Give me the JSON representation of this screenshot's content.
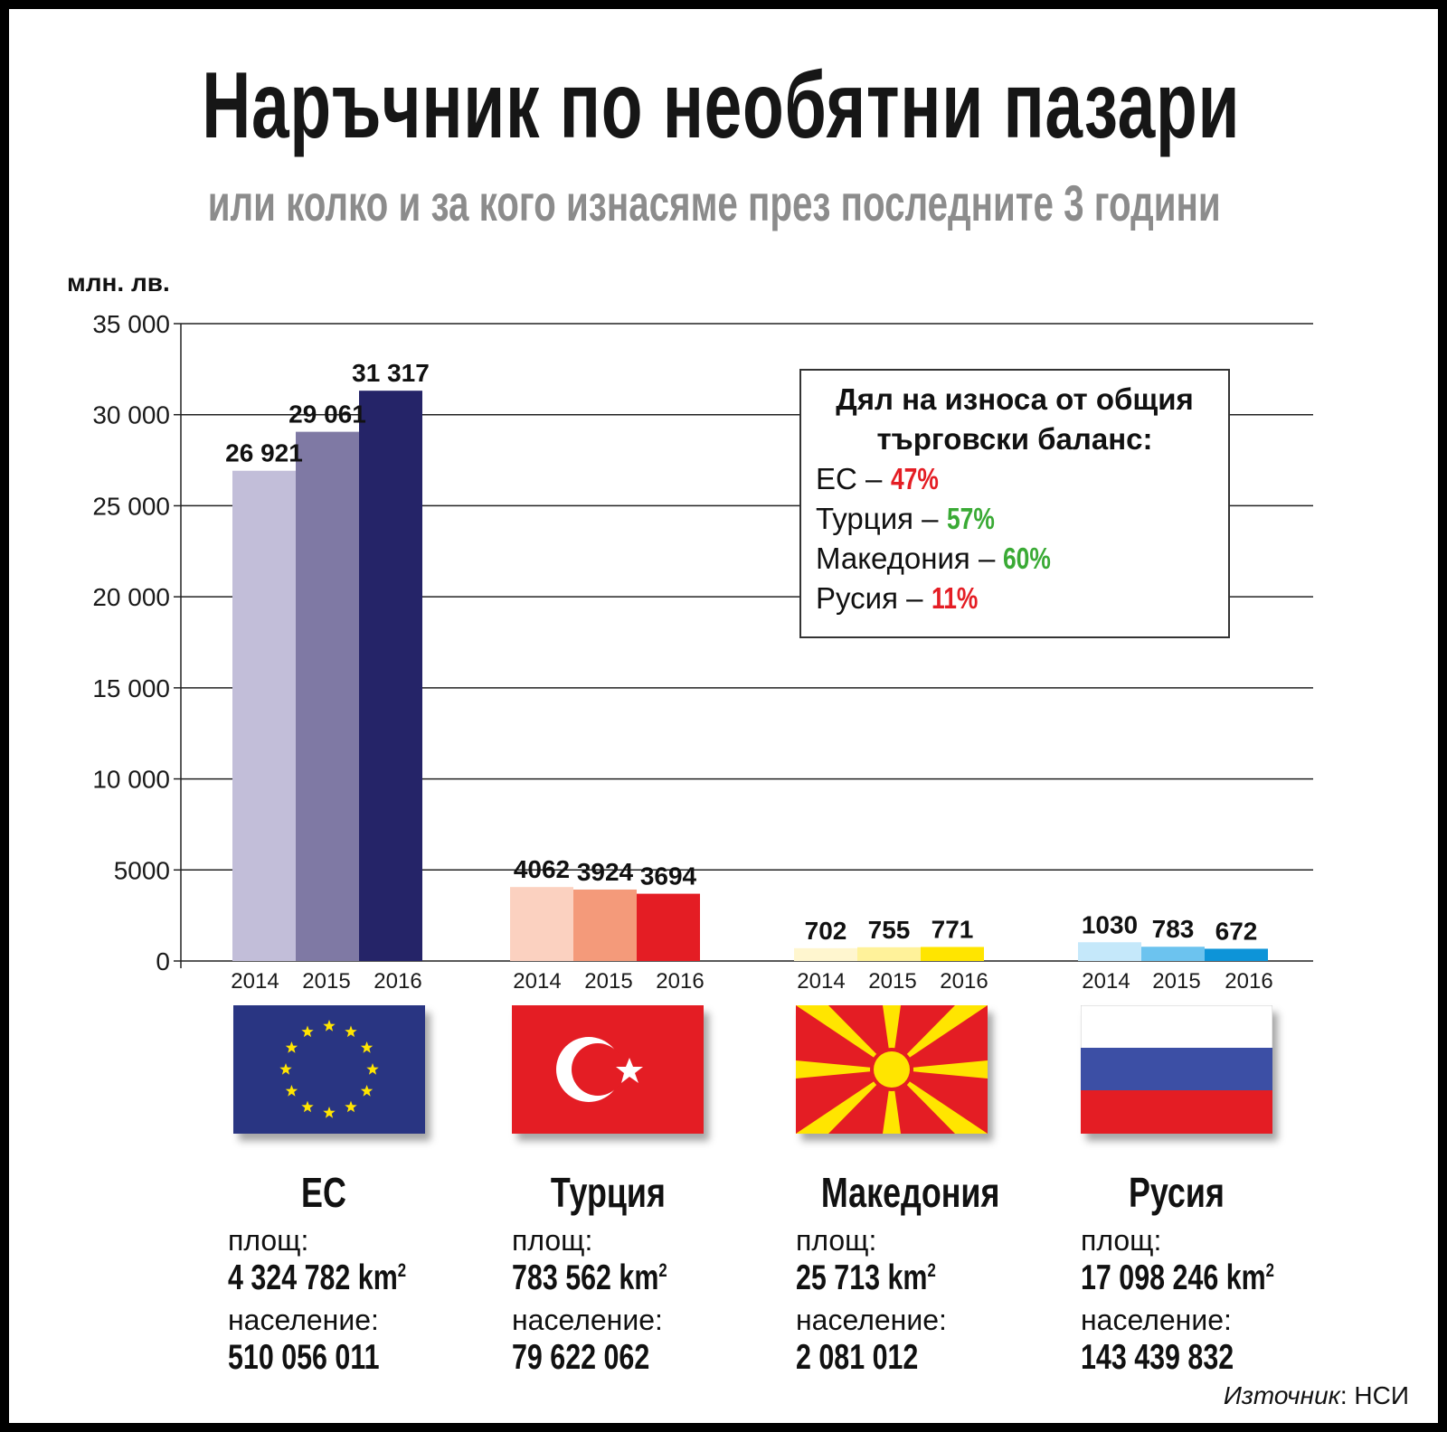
{
  "header": {
    "title": "Наръчник по необятни пазари",
    "subtitle": "или колко и за кого изнасяме през последните 3 години"
  },
  "chart_data": {
    "type": "bar",
    "ylabel": "млн. лв.",
    "ylim": [
      0,
      35000
    ],
    "yticks": [
      "0",
      "5000",
      "10 000",
      "15 000",
      "20 000",
      "25 000",
      "30 000",
      "35 000"
    ],
    "ytick_values": [
      0,
      5000,
      10000,
      15000,
      20000,
      25000,
      30000,
      35000
    ],
    "grid": true,
    "groups": [
      {
        "name": "ЕС",
        "years": [
          "2014",
          "2015",
          "2016"
        ],
        "values": [
          26921,
          29061,
          31317
        ],
        "labels": [
          "26 921",
          "29 061",
          "31 317"
        ],
        "colors": [
          "#c2bed9",
          "#7f79a4",
          "#252468"
        ]
      },
      {
        "name": "Турция",
        "years": [
          "2014",
          "2015",
          "2016"
        ],
        "values": [
          4062,
          3924,
          3694
        ],
        "labels": [
          "4062",
          "3924",
          "3694"
        ],
        "colors": [
          "#fbd1c0",
          "#f49a7a",
          "#e41d24"
        ]
      },
      {
        "name": "Македония",
        "years": [
          "2014",
          "2015",
          "2016"
        ],
        "values": [
          702,
          755,
          771
        ],
        "labels": [
          "702",
          "755",
          "771"
        ],
        "colors": [
          "#fff6cf",
          "#fff29a",
          "#ffe500"
        ]
      },
      {
        "name": "Русия",
        "years": [
          "2014",
          "2015",
          "2016"
        ],
        "values": [
          1030,
          783,
          672
        ],
        "labels": [
          "1030",
          "783",
          "672"
        ],
        "colors": [
          "#c5e8fa",
          "#6cc3ef",
          "#0d94d8"
        ]
      }
    ]
  },
  "legend": {
    "title": "Дял на износа от общия търговски баланс:",
    "items": [
      {
        "label": "ЕС – ",
        "value": "47%",
        "color": "#e41d24"
      },
      {
        "label": "Турция – ",
        "value": "57%",
        "color": "#3aaa35"
      },
      {
        "label": "Македония – ",
        "value": "60%",
        "color": "#3aaa35"
      },
      {
        "label": "Русия – ",
        "value": "11%",
        "color": "#e41d24"
      }
    ]
  },
  "countries": [
    {
      "name": "ЕС",
      "flag": "eu-flag",
      "area_label": "площ:",
      "area": "4 324 782 km",
      "pop_label": "население:",
      "population": "510 056 011"
    },
    {
      "name": "Турция",
      "flag": "turkey-flag",
      "area_label": "площ:",
      "area": "783 562 km",
      "pop_label": "население:",
      "population": "79 622 062"
    },
    {
      "name": "Македония",
      "flag": "macedonia-flag",
      "area_label": "площ:",
      "area": "25 713 km",
      "pop_label": "население:",
      "population": "2 081 012"
    },
    {
      "name": "Русия",
      "flag": "russia-flag",
      "area_label": "площ:",
      "area": "17 098 246 km",
      "pop_label": "население:",
      "population": "143 439 832"
    }
  ],
  "area_unit_sup": "2",
  "source": {
    "label": "Източник",
    "value": ": НСИ"
  }
}
